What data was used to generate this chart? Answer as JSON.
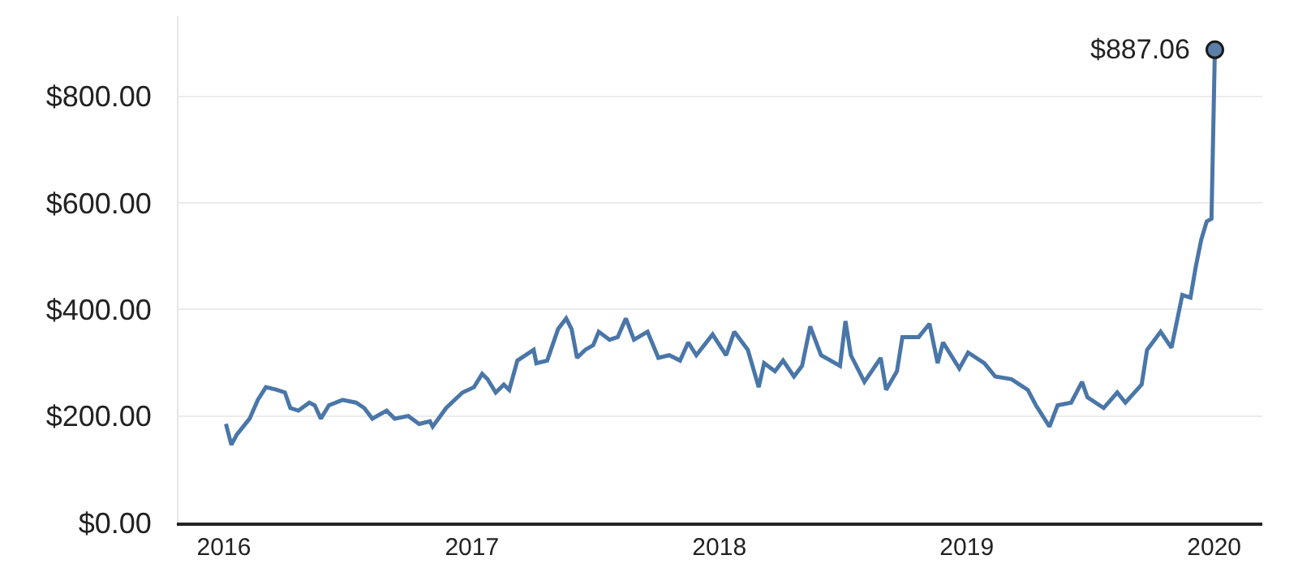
{
  "chart_data": {
    "type": "line",
    "xlim": [
      "2015-10-26",
      "2020-03-12"
    ],
    "ylim": [
      0,
      950
    ],
    "xticks": [
      {
        "value": "2016-01-01",
        "label": "2016"
      },
      {
        "value": "2017-01-01",
        "label": "2017"
      },
      {
        "value": "2018-01-01",
        "label": "2018"
      },
      {
        "value": "2019-01-01",
        "label": "2019"
      },
      {
        "value": "2020-01-01",
        "label": "2020"
      }
    ],
    "yticks": [
      {
        "value": 0,
        "label": "$0.00"
      },
      {
        "value": 200,
        "label": "$200.00"
      },
      {
        "value": 400,
        "label": "$400.00"
      },
      {
        "value": 600,
        "label": "$600.00"
      },
      {
        "value": 800,
        "label": "$800.00"
      }
    ],
    "grid": "y",
    "marker": "none",
    "line_style": "solid",
    "annotations": [
      {
        "text": "$887.06",
        "x": "2020-01-02",
        "y": 887.06
      }
    ],
    "series": [
      {
        "color": "#4a76a8",
        "x": [
          "2016-01-04",
          "2016-01-12",
          "2016-01-20",
          "2016-02-08",
          "2016-02-20",
          "2016-03-03",
          "2016-03-19",
          "2016-03-31",
          "2016-04-08",
          "2016-04-20",
          "2016-05-06",
          "2016-05-14",
          "2016-05-23",
          "2016-06-04",
          "2016-06-24",
          "2016-07-14",
          "2016-07-26",
          "2016-08-07",
          "2016-08-28",
          "2016-09-09",
          "2016-09-29",
          "2016-10-15",
          "2016-10-31",
          "2016-11-04",
          "2016-11-24",
          "2016-12-18",
          "2017-01-04",
          "2017-01-16",
          "2017-01-24",
          "2017-02-05",
          "2017-02-17",
          "2017-02-25",
          "2017-03-09",
          "2017-04-02",
          "2017-04-06",
          "2017-04-22",
          "2017-05-08",
          "2017-05-20",
          "2017-05-28",
          "2017-06-05",
          "2017-06-17",
          "2017-06-29",
          "2017-07-07",
          "2017-07-23",
          "2017-08-04",
          "2017-08-16",
          "2017-08-28",
          "2017-09-17",
          "2017-10-03",
          "2017-10-19",
          "2017-11-04",
          "2017-11-16",
          "2017-11-28",
          "2017-12-22",
          "2018-01-11",
          "2018-01-23",
          "2018-02-12",
          "2018-02-28",
          "2018-03-08",
          "2018-03-24",
          "2018-04-05",
          "2018-04-21",
          "2018-05-03",
          "2018-05-15",
          "2018-05-31",
          "2018-06-28",
          "2018-07-06",
          "2018-07-14",
          "2018-08-03",
          "2018-08-27",
          "2018-09-04",
          "2018-09-20",
          "2018-09-28",
          "2018-10-22",
          "2018-11-07",
          "2018-11-19",
          "2018-11-27",
          "2018-12-21",
          "2019-01-03",
          "2019-01-27",
          "2019-02-12",
          "2019-03-08",
          "2019-04-01",
          "2019-04-13",
          "2019-05-03",
          "2019-05-15",
          "2019-06-04",
          "2019-06-20",
          "2019-06-28",
          "2019-07-22",
          "2019-08-11",
          "2019-08-23",
          "2019-09-16",
          "2019-09-24",
          "2019-10-14",
          "2019-10-30",
          "2019-11-15",
          "2019-11-27",
          "2019-12-05",
          "2019-12-13",
          "2019-12-21",
          "2019-12-28",
          "2020-01-02"
        ],
        "values": [
          185,
          146,
          165,
          195,
          230,
          254,
          249,
          244,
          215,
          210,
          225,
          220,
          195,
          220,
          230,
          225,
          215,
          195,
          210,
          195,
          200,
          185,
          190,
          180,
          215,
          244,
          254,
          279,
          269,
          244,
          259,
          249,
          304,
          324,
          299,
          304,
          363,
          383,
          363,
          309,
          324,
          333,
          358,
          343,
          348,
          383,
          343,
          358,
          309,
          314,
          304,
          338,
          314,
          353,
          314,
          358,
          324,
          254,
          299,
          284,
          304,
          274,
          294,
          368,
          314,
          294,
          378,
          314,
          264,
          309,
          249,
          284,
          348,
          348,
          373,
          299,
          338,
          289,
          319,
          299,
          274,
          269,
          249,
          220,
          180,
          220,
          225,
          264,
          235,
          215,
          244,
          225,
          259,
          324,
          358,
          328,
          427,
          422,
          481,
          531,
          565,
          570,
          887.06
        ]
      },
      {
        "type": "scatter",
        "marker": "circle",
        "color": "#5a7fa8",
        "x": [
          "2020-01-02"
        ],
        "values": [
          887.06
        ]
      }
    ]
  }
}
